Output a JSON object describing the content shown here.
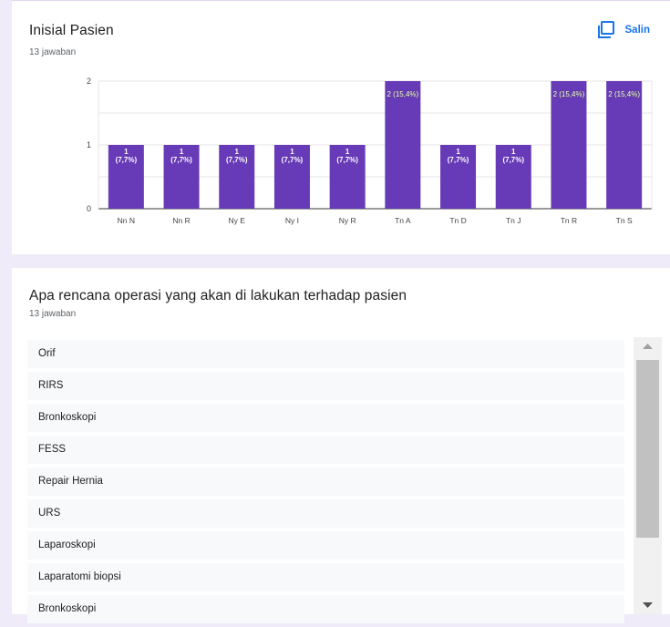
{
  "question1": {
    "title": "Inisial Pasien",
    "count": "13 jawaban",
    "copy_label": "Salin"
  },
  "chart_data": {
    "type": "bar",
    "categories": [
      "Nn N",
      "Nn R",
      "Ny E",
      "Ny I",
      "Ny R",
      "Tn A",
      "Tn D",
      "Tn J",
      "Tn R",
      "Tn S"
    ],
    "values": [
      1,
      1,
      1,
      1,
      1,
      2,
      1,
      1,
      2,
      2
    ],
    "data_labels": [
      "1 (7,7%)",
      "1 (7,7%)",
      "1 (7,7%)",
      "1 (7,7%)",
      "1 (7,7%)",
      "2 (15,4%)",
      "1 (7,7%)",
      "1 (7,7%)",
      "2 (15,4%)",
      "2 (15,4%)"
    ],
    "yticks": [
      0,
      1,
      2
    ],
    "ylim": [
      0,
      2
    ],
    "bar_color": "#673ab7",
    "grid": true
  },
  "question2": {
    "title": "Apa rencana operasi yang akan di lakukan terhadap pasien",
    "count": "13 jawaban",
    "responses": [
      "Orif",
      "RIRS",
      "Bronkoskopi",
      "FESS",
      "Repair Hernia",
      "URS",
      "Laparoskopi",
      "Laparatomi biopsi",
      "Bronkoskopi"
    ]
  },
  "colors": {
    "accent": "#673ab7",
    "link": "#1a73e8",
    "background": "#f0ebf8"
  }
}
